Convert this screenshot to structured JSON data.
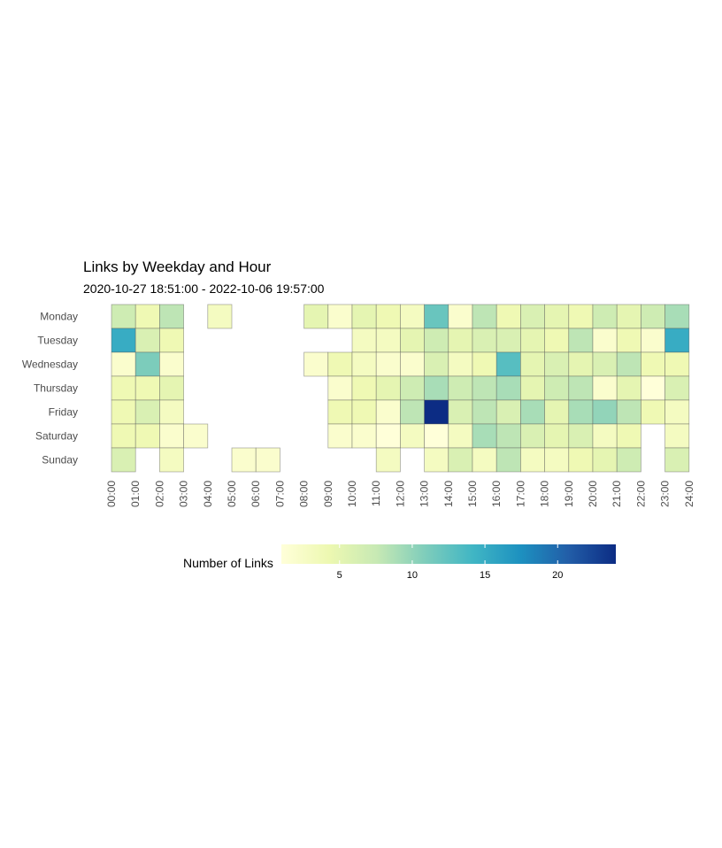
{
  "chart_data": {
    "type": "heatmap",
    "title": "Links by Weekday and Hour",
    "subtitle": "2020-10-27 18:51:00  -  2022-10-06 19:57:00",
    "xlabel": "",
    "ylabel": "",
    "x_ticks": [
      "00:00",
      "01:00",
      "02:00",
      "03:00",
      "04:00",
      "05:00",
      "06:00",
      "07:00",
      "08:00",
      "09:00",
      "10:00",
      "11:00",
      "12:00",
      "13:00",
      "14:00",
      "15:00",
      "16:00",
      "17:00",
      "18:00",
      "19:00",
      "20:00",
      "21:00",
      "22:00",
      "23:00",
      "24:00"
    ],
    "rows": [
      "Monday",
      "Tuesday",
      "Wednesday",
      "Thursday",
      "Friday",
      "Saturday",
      "Sunday"
    ],
    "values": [
      [
        7,
        4,
        8,
        null,
        3,
        null,
        null,
        null,
        5,
        2,
        5,
        4,
        3,
        12,
        2,
        8,
        4,
        6,
        5,
        4,
        7,
        5,
        7,
        9
      ],
      [
        15,
        6,
        4,
        null,
        null,
        null,
        null,
        null,
        null,
        null,
        3,
        3,
        5,
        7,
        5,
        6,
        6,
        5,
        4,
        8,
        2,
        4,
        2,
        15
      ],
      [
        2,
        11,
        2,
        null,
        null,
        null,
        null,
        null,
        2,
        4,
        3,
        2,
        2,
        6,
        3,
        4,
        13,
        5,
        6,
        5,
        6,
        8,
        4,
        4
      ],
      [
        4,
        4,
        5,
        null,
        null,
        null,
        null,
        null,
        null,
        2,
        4,
        5,
        7,
        9,
        7,
        8,
        9,
        5,
        7,
        8,
        2,
        5,
        1,
        6
      ],
      [
        4,
        6,
        3,
        null,
        null,
        null,
        null,
        null,
        null,
        4,
        4,
        2,
        8,
        24,
        6,
        8,
        6,
        9,
        5,
        9,
        10,
        8,
        4,
        3
      ],
      [
        4,
        4,
        2,
        2,
        null,
        null,
        null,
        null,
        null,
        2,
        2,
        1,
        3,
        1,
        3,
        9,
        8,
        6,
        5,
        6,
        3,
        4,
        null,
        3
      ],
      [
        6,
        null,
        3,
        null,
        null,
        2,
        2,
        null,
        null,
        null,
        null,
        3,
        null,
        3,
        6,
        3,
        8,
        3,
        3,
        4,
        5,
        7,
        null,
        6
      ]
    ],
    "color_scale": {
      "palette": "YlGnBu",
      "stops": [
        "#ffffd9",
        "#edf8b1",
        "#c7e9b4",
        "#7fcdbb",
        "#41b6c4",
        "#1d91c0",
        "#225ea8",
        "#0c2c84"
      ],
      "min": 1,
      "max": 24
    },
    "legend": {
      "title": "Number of Links",
      "ticks": [
        "5",
        "10",
        "15",
        "20"
      ],
      "tick_values": [
        5,
        10,
        15,
        20
      ],
      "placement": "bottom"
    },
    "grid": false
  }
}
